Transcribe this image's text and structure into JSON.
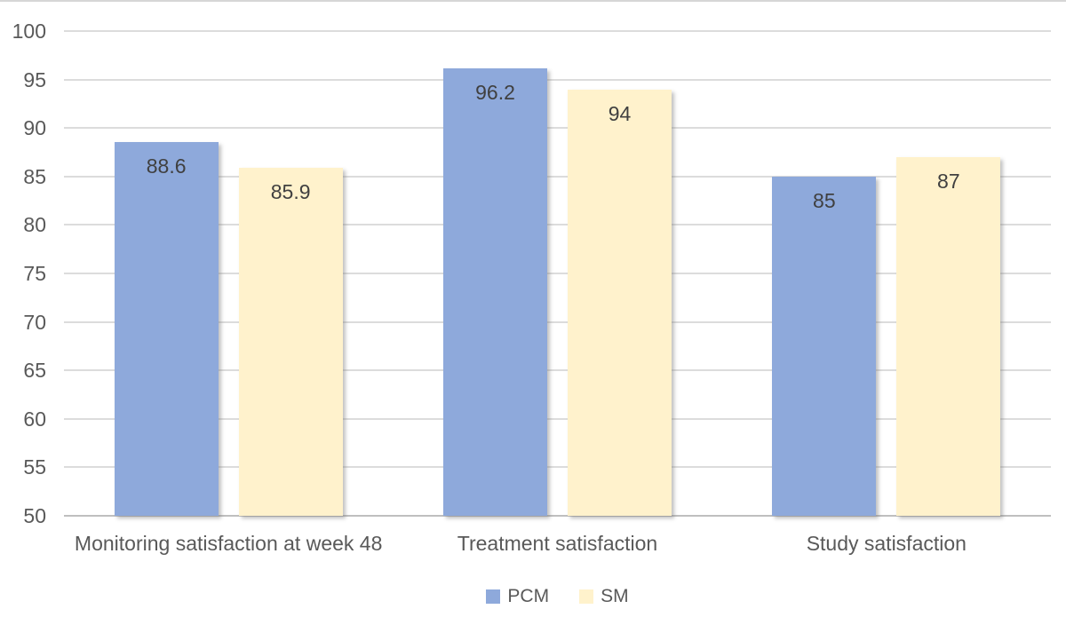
{
  "chart_data": {
    "type": "bar",
    "title": "",
    "xlabel": "",
    "ylabel": "",
    "categories": [
      "Monitoring satisfaction at week 48",
      "Treatment satisfaction",
      "Study satisfaction"
    ],
    "series": [
      {
        "name": "PCM",
        "color": "#8EA9DB",
        "values": [
          88.6,
          96.2,
          85
        ]
      },
      {
        "name": "SM",
        "color": "#FFF2CC",
        "values": [
          85.9,
          94,
          87
        ]
      }
    ],
    "data_labels": {
      "PCM": [
        "88.6",
        "96.2",
        "85"
      ],
      "SM": [
        "85.9",
        "94",
        "87"
      ]
    },
    "ylim": [
      50,
      100
    ],
    "ytick_step": 5,
    "yticks": [
      "100",
      "95",
      "90",
      "85",
      "80",
      "75",
      "70",
      "65",
      "60",
      "55",
      "50"
    ],
    "grid": true,
    "legend_position": "bottom",
    "colors": {
      "gridline": "#DCDCDC",
      "axis_line": "#BFBFBF",
      "tick_text": "#595959",
      "data_label_text": "#404040",
      "background": "#FFFFFF"
    }
  }
}
